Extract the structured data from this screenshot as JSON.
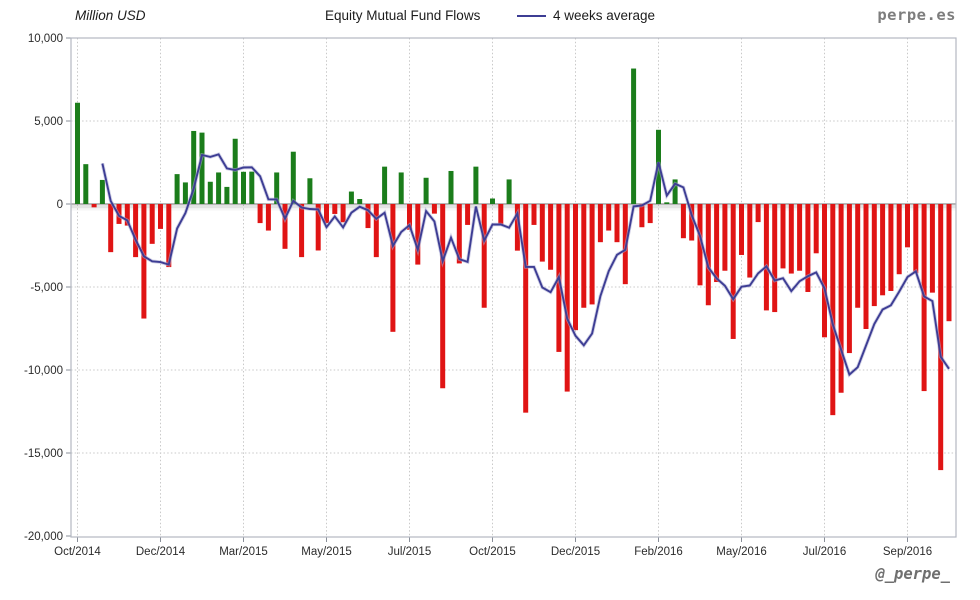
{
  "chart_data": {
    "type": "bar",
    "title": "Equity Mutual Fund Flows",
    "unit_label": "Million USD",
    "frequency": "weekly",
    "legend": [
      {
        "name": "4 weeks average",
        "type": "line",
        "color": "#3d3d94"
      }
    ],
    "x_tick_labels": [
      "Oct/2014",
      "Dec/2014",
      "Mar/2015",
      "May/2015",
      "Jul/2015",
      "Oct/2015",
      "Dec/2015",
      "Feb/2016",
      "May/2016",
      "Jul/2016",
      "Sep/2016"
    ],
    "x_tick_interval_weeks": 10,
    "y_ticks": [
      10000,
      5000,
      0,
      -5000,
      -10000,
      -15000,
      -20000
    ],
    "y_tick_labels": [
      "10,000",
      "5,000",
      "0",
      "-5,000",
      "-10,000",
      "-15,000",
      "-20,000"
    ],
    "ylim": [
      -20000,
      10000
    ],
    "grid": "dotted",
    "values": [
      6100,
      2400,
      -200,
      1450,
      -2900,
      -1200,
      -1300,
      -3200,
      -6900,
      -2400,
      -1500,
      -3800,
      1800,
      1300,
      4400,
      4300,
      1340,
      1900,
      1030,
      3930,
      1940,
      1950,
      -1150,
      -1600,
      1900,
      -2700,
      3150,
      -3200,
      1550,
      -2800,
      -1150,
      -600,
      -1100,
      750,
      300,
      -1450,
      -3200,
      2250,
      -7700,
      1900,
      -1550,
      -3650,
      1580,
      -580,
      -11100,
      1990,
      -3580,
      -1260,
      2250,
      -6250,
      330,
      -1260,
      1480,
      -2810,
      -12570,
      -1260,
      -3470,
      -3960,
      -8910,
      -11300,
      -7600,
      -6250,
      -6050,
      -2300,
      -1600,
      -2300,
      -4830,
      8160,
      -1400,
      -1150,
      4470,
      100,
      1480,
      -2060,
      -2200,
      -4900,
      -6100,
      -4700,
      -4020,
      -8130,
      -3070,
      -4430,
      -1090,
      -6410,
      -6510,
      -3880,
      -4190,
      -4020,
      -5300,
      -2970,
      -8030,
      -12720,
      -11370,
      -8980,
      -6250,
      -7530,
      -6150,
      -5500,
      -5240,
      -4230,
      -2610,
      -4170,
      -11270,
      -5340,
      -16030,
      -7060
    ],
    "average_line": "4-week trailing moving average of values",
    "colors": {
      "positive_bar": "#1b7d1b",
      "negative_bar": "#e01414",
      "average_line": "#3d3d94",
      "gridline": "#c9c9c9",
      "zero_line": "#9e9e9e",
      "frame": "#b3b8c2"
    },
    "watermarks": {
      "site": "perpe.es",
      "handle": "@_perpe_"
    }
  }
}
